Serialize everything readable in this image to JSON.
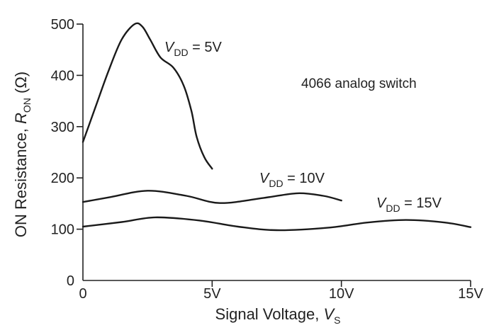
{
  "chart_data": {
    "type": "line",
    "title": "",
    "annotation": "4066 analog switch",
    "xlabel": {
      "main": "Signal Voltage, ",
      "var": "V",
      "sub": "S"
    },
    "ylabel": {
      "main": "ON Resistance, ",
      "var": "R",
      "sub": "ON",
      "unit": " (Ω)"
    },
    "xlim": [
      0,
      15
    ],
    "ylim": [
      0,
      500
    ],
    "x_ticks": [
      {
        "value": 0,
        "label": "0"
      },
      {
        "value": 5,
        "label": "5V"
      },
      {
        "value": 10,
        "label": "10V"
      },
      {
        "value": 15,
        "label": "15V"
      }
    ],
    "y_ticks": [
      {
        "value": 0,
        "label": "0"
      },
      {
        "value": 100,
        "label": "100"
      },
      {
        "value": 200,
        "label": "200"
      },
      {
        "value": 300,
        "label": "300"
      },
      {
        "value": 400,
        "label": "400"
      },
      {
        "value": 500,
        "label": "500"
      }
    ],
    "grid": false,
    "series": [
      {
        "name": "VDD = 5V",
        "label": {
          "var": "V",
          "sub": "DD",
          "rest": " = 5V"
        },
        "x": [
          0,
          0.5,
          1.0,
          1.5,
          2.0,
          2.3,
          2.6,
          3.0,
          3.5,
          3.9,
          4.2,
          4.4,
          4.7,
          5.0
        ],
        "y": [
          270,
          340,
          410,
          470,
          500,
          495,
          470,
          435,
          415,
          380,
          330,
          280,
          240,
          218
        ]
      },
      {
        "name": "VDD = 10V",
        "label": {
          "var": "V",
          "sub": "DD",
          "rest": " = 10V"
        },
        "x": [
          0,
          1.0,
          2.5,
          4.0,
          5.3,
          7.0,
          8.3,
          9.3,
          10.0
        ],
        "y": [
          153,
          162,
          175,
          165,
          151,
          161,
          170,
          165,
          156
        ]
      },
      {
        "name": "VDD = 15V",
        "label": {
          "var": "V",
          "sub": "DD",
          "rest": " = 15V"
        },
        "x": [
          0,
          1.5,
          2.8,
          4.5,
          6.0,
          7.5,
          9.5,
          11.0,
          12.5,
          14.0,
          15.0
        ],
        "y": [
          105,
          114,
          123,
          117,
          105,
          98,
          103,
          113,
          118,
          113,
          104
        ]
      }
    ]
  }
}
